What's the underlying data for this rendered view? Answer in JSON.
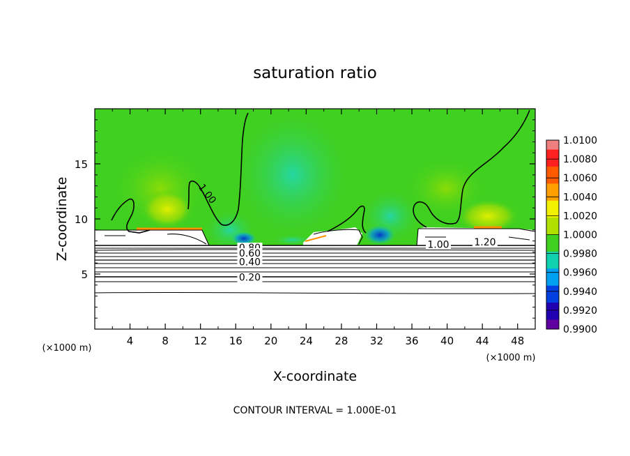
{
  "chart_data": {
    "type": "heatmap",
    "title": "saturation ratio",
    "xlabel": "X-coordinate",
    "ylabel": "Z-coordinate",
    "x_unit": "(×1000 m)",
    "y_unit": "(×1000 m)",
    "xlim": [
      0,
      50
    ],
    "ylim": [
      0,
      20
    ],
    "x_ticks": [
      4,
      8,
      12,
      16,
      20,
      24,
      28,
      32,
      36,
      40,
      44,
      48
    ],
    "y_ticks": [
      5,
      10,
      15
    ],
    "footer": "CONTOUR INTERVAL = 1.000E-01",
    "colorbar": {
      "levels": [
        1.01,
        1.008,
        1.006,
        1.004,
        1.002,
        1.0,
        0.998,
        0.996,
        0.994,
        0.992,
        0.99
      ],
      "labels": [
        "1.0100",
        "1.0080",
        "1.0060",
        "1.0040",
        "1.0020",
        "1.0000",
        "0.9980",
        "0.9960",
        "0.9940",
        "0.9920",
        "0.9900"
      ],
      "colors": [
        "#f08080",
        "#ff2020",
        "#ff5a00",
        "#ffa000",
        "#f0f000",
        "#b0e000",
        "#40d020",
        "#10d0b0",
        "#00a0f0",
        "#0040e0",
        "#2000b0",
        "#6000a0"
      ]
    },
    "contour_labels": [
      {
        "text": "1.00",
        "x": 12.8,
        "z": 12.3
      },
      {
        "text": "1.00",
        "x": 39.0,
        "z": 7.7
      },
      {
        "text": "1.20",
        "x": 44.3,
        "z": 7.9
      },
      {
        "text": "0.80",
        "x": 17.6,
        "z": 7.4
      },
      {
        "text": "0.60",
        "x": 17.6,
        "z": 6.9
      },
      {
        "text": "0.40",
        "x": 17.6,
        "z": 6.1
      },
      {
        "text": "0.20",
        "x": 17.6,
        "z": 4.7
      }
    ]
  }
}
